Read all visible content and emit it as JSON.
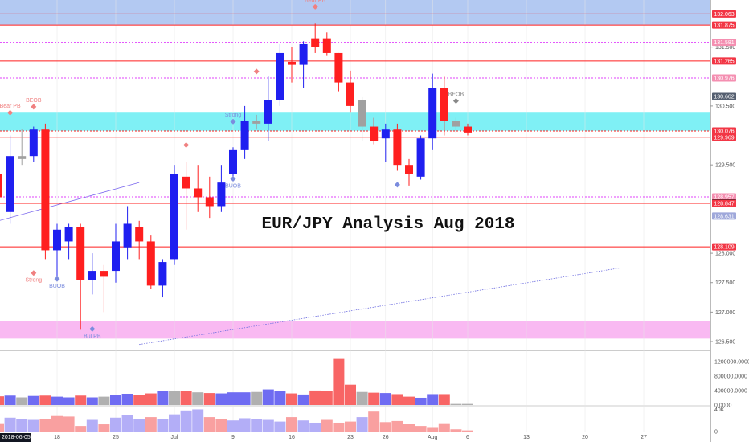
{
  "chart_data": {
    "type": "candlestick",
    "title": "EUR/JPY Analysis Aug 2018",
    "price_axis": {
      "ylim": [
        126.35,
        132.3
      ],
      "ticks": [
        "129.500",
        "128.000",
        "127.500",
        "127.000",
        "126.500",
        "131.500",
        "130.500"
      ],
      "tick_values": [
        129.5,
        128.0,
        127.5,
        127.0,
        126.5,
        131.5,
        130.5
      ]
    },
    "time_axis": {
      "xlim": [
        0,
        53
      ],
      "labels": [
        {
          "text": "2018-06-05",
          "index": 0,
          "highlight": true
        },
        {
          "text": "18",
          "index": 5
        },
        {
          "text": "25",
          "index": 10
        },
        {
          "text": "Jul",
          "index": 15
        },
        {
          "text": "9",
          "index": 20
        },
        {
          "text": "16",
          "index": 25
        },
        {
          "text": "23",
          "index": 30
        },
        {
          "text": "26",
          "index": 33
        },
        {
          "text": "Aug",
          "index": 37
        },
        {
          "text": "6",
          "index": 40
        },
        {
          "text": "13",
          "index": 45
        },
        {
          "text": "20",
          "index": 50
        },
        {
          "text": "27",
          "index": 55
        }
      ]
    },
    "candles": [
      {
        "o": 128.95,
        "h": 129.9,
        "l": 128.7,
        "c": 129.35,
        "color": "red"
      },
      {
        "o": 128.7,
        "h": 130.0,
        "l": 128.5,
        "c": 129.65,
        "color": "blue"
      },
      {
        "o": 129.6,
        "h": 130.1,
        "l": 129.5,
        "c": 129.65,
        "color": "gray"
      },
      {
        "o": 129.65,
        "h": 130.15,
        "l": 129.55,
        "c": 130.1,
        "color": "blue"
      },
      {
        "o": 130.1,
        "h": 130.2,
        "l": 127.9,
        "c": 128.05,
        "color": "red"
      },
      {
        "o": 128.05,
        "h": 128.5,
        "l": 127.6,
        "c": 128.4,
        "color": "blue"
      },
      {
        "o": 128.2,
        "h": 128.5,
        "l": 127.9,
        "c": 128.45,
        "color": "blue"
      },
      {
        "o": 128.45,
        "h": 128.5,
        "l": 126.7,
        "c": 127.55,
        "color": "red"
      },
      {
        "o": 127.55,
        "h": 128.0,
        "l": 127.3,
        "c": 127.7,
        "color": "blue"
      },
      {
        "o": 127.6,
        "h": 127.8,
        "l": 127.0,
        "c": 127.7,
        "color": "red"
      },
      {
        "o": 127.7,
        "h": 128.5,
        "l": 127.5,
        "c": 128.2,
        "color": "blue"
      },
      {
        "o": 128.1,
        "h": 128.8,
        "l": 127.9,
        "c": 128.5,
        "color": "blue"
      },
      {
        "o": 128.45,
        "h": 128.55,
        "l": 127.9,
        "c": 128.2,
        "color": "red"
      },
      {
        "o": 128.2,
        "h": 128.3,
        "l": 127.4,
        "c": 127.45,
        "color": "red"
      },
      {
        "o": 127.45,
        "h": 127.9,
        "l": 127.25,
        "c": 127.85,
        "color": "blue"
      },
      {
        "o": 127.9,
        "h": 129.5,
        "l": 127.8,
        "c": 129.35,
        "color": "blue"
      },
      {
        "o": 129.3,
        "h": 129.55,
        "l": 128.4,
        "c": 129.1,
        "color": "red"
      },
      {
        "o": 129.1,
        "h": 129.5,
        "l": 128.7,
        "c": 128.95,
        "color": "red"
      },
      {
        "o": 128.95,
        "h": 129.3,
        "l": 128.6,
        "c": 128.8,
        "color": "red"
      },
      {
        "o": 128.8,
        "h": 129.5,
        "l": 128.7,
        "c": 129.2,
        "color": "blue"
      },
      {
        "o": 129.35,
        "h": 129.8,
        "l": 129.3,
        "c": 129.75,
        "color": "blue"
      },
      {
        "o": 129.75,
        "h": 130.5,
        "l": 129.6,
        "c": 130.25,
        "color": "blue"
      },
      {
        "o": 130.25,
        "h": 130.35,
        "l": 130.1,
        "c": 130.2,
        "color": "gray"
      },
      {
        "o": 130.2,
        "h": 131.0,
        "l": 129.9,
        "c": 130.6,
        "color": "blue"
      },
      {
        "o": 130.6,
        "h": 131.55,
        "l": 130.5,
        "c": 131.4,
        "color": "blue"
      },
      {
        "o": 131.2,
        "h": 131.5,
        "l": 130.9,
        "c": 131.25,
        "color": "red"
      },
      {
        "o": 131.2,
        "h": 131.6,
        "l": 130.8,
        "c": 131.55,
        "color": "blue"
      },
      {
        "o": 131.65,
        "h": 131.9,
        "l": 131.4,
        "c": 131.5,
        "color": "red"
      },
      {
        "o": 131.65,
        "h": 131.75,
        "l": 131.35,
        "c": 131.4,
        "color": "red"
      },
      {
        "o": 131.4,
        "h": 131.4,
        "l": 130.75,
        "c": 130.9,
        "color": "red"
      },
      {
        "o": 130.9,
        "h": 131.1,
        "l": 130.4,
        "c": 130.5,
        "color": "red"
      },
      {
        "o": 130.6,
        "h": 130.65,
        "l": 129.9,
        "c": 130.15,
        "color": "gray"
      },
      {
        "o": 130.15,
        "h": 130.3,
        "l": 129.85,
        "c": 129.9,
        "color": "red"
      },
      {
        "o": 129.95,
        "h": 130.2,
        "l": 129.55,
        "c": 130.1,
        "color": "blue"
      },
      {
        "o": 130.1,
        "h": 130.2,
        "l": 129.4,
        "c": 129.5,
        "color": "red"
      },
      {
        "o": 129.5,
        "h": 129.6,
        "l": 129.15,
        "c": 129.35,
        "color": "red"
      },
      {
        "o": 129.3,
        "h": 130.0,
        "l": 129.25,
        "c": 129.95,
        "color": "blue"
      },
      {
        "o": 129.95,
        "h": 131.05,
        "l": 129.75,
        "c": 130.8,
        "color": "blue"
      },
      {
        "o": 130.8,
        "h": 131.0,
        "l": 130.0,
        "c": 130.25,
        "color": "red"
      },
      {
        "o": 130.25,
        "h": 130.3,
        "l": 130.05,
        "c": 130.15,
        "color": "gray"
      },
      {
        "o": 130.15,
        "h": 130.2,
        "l": 130.0,
        "c": 130.05,
        "color": "red"
      }
    ],
    "price_lines": [
      {
        "price": 132.063,
        "label": "132.063",
        "style": "solid",
        "color": "#ff1f1f"
      },
      {
        "price": 131.875,
        "label": "131.875",
        "style": "solid",
        "color": "#ff1f1f"
      },
      {
        "price": 131.581,
        "label": "131.581",
        "style": "dotted",
        "color": "#e040fb"
      },
      {
        "price": 131.265,
        "label": "131.265",
        "style": "solid",
        "color": "#ff1f1f"
      },
      {
        "price": 130.976,
        "label": "130.976",
        "style": "dotted",
        "color": "#e040fb"
      },
      {
        "price": 130.076,
        "label": "130.076",
        "style": "dotted",
        "color": "#ff1f1f"
      },
      {
        "price": 129.969,
        "label": "129.969",
        "style": "solid",
        "color": "#ff1f1f"
      },
      {
        "price": 128.957,
        "label": "128.957",
        "style": "dotted",
        "color": "#e040fb"
      },
      {
        "price": 128.854,
        "label": "128.854",
        "style": "solid",
        "color": "#222222"
      },
      {
        "price": 128.847,
        "label": "128.847",
        "style": "solid",
        "color": "#ff1f1f"
      },
      {
        "price": 128.109,
        "label": "128.109",
        "style": "solid",
        "color": "#ff1f1f"
      }
    ],
    "price_badges": [
      {
        "price": 132.063,
        "label": "132.063",
        "color": "#f23645"
      },
      {
        "price": 131.875,
        "label": "131.875",
        "color": "#f23645"
      },
      {
        "price": 131.581,
        "label": "131.581",
        "color": "#f48fb1"
      },
      {
        "price": 131.265,
        "label": "131.265",
        "color": "#f23645"
      },
      {
        "price": 130.976,
        "label": "130.976",
        "color": "#f48fb1"
      },
      {
        "price": 130.662,
        "label": "130.662",
        "color": "#555f70"
      },
      {
        "price": 130.076,
        "label": "130.076",
        "color": "#f23645"
      },
      {
        "price": 129.969,
        "label": "129.969",
        "color": "#f23645"
      },
      {
        "price": 128.957,
        "label": "128.957",
        "color": "#f48fb1"
      },
      {
        "price": 128.854,
        "label": "128.854",
        "color": "#131722"
      },
      {
        "price": 128.847,
        "label": "128.847",
        "color": "#f23645"
      },
      {
        "price": 128.631,
        "label": "128.631",
        "color": "#9fa8da"
      },
      {
        "price": 128.109,
        "label": "128.109",
        "color": "#f23645"
      }
    ],
    "zones": [
      {
        "from": 131.88,
        "to": 132.35,
        "color": "#b3c9f2"
      },
      {
        "from": 130.08,
        "to": 130.4,
        "color": "#7ff0f5"
      },
      {
        "from": 126.55,
        "to": 126.85,
        "color": "#f9b9f2"
      }
    ],
    "trendlines": [
      {
        "from": [
          0,
          128.55
        ],
        "to": [
          12,
          129.2
        ],
        "color": "#7b68ee",
        "style": "solid"
      },
      {
        "from": [
          12,
          126.45
        ],
        "to": [
          53,
          127.75
        ],
        "color": "#6f6fe0",
        "style": "dotted"
      }
    ],
    "signals": [
      {
        "index": 1,
        "price": 130.25,
        "label": "Bear PB",
        "side": "above",
        "color": "#f08080"
      },
      {
        "index": 3,
        "price": 130.35,
        "label": "BEOB",
        "side": "above",
        "color": "#f08080"
      },
      {
        "index": 3,
        "price": 127.8,
        "label": "Strong",
        "side": "below",
        "color": "#f08080"
      },
      {
        "index": 5,
        "price": 127.7,
        "label": "BUOB",
        "side": "below",
        "color": "#7b8cde"
      },
      {
        "index": 8,
        "price": 126.85,
        "label": "Bul PB",
        "side": "below",
        "color": "#7b8cde"
      },
      {
        "index": 16,
        "price": 129.7,
        "label": "",
        "side": "above",
        "color": "#f08080"
      },
      {
        "index": 20,
        "price": 130.1,
        "label": "Strong",
        "side": "above",
        "color": "#7b8cde"
      },
      {
        "index": 20,
        "price": 129.4,
        "label": "BUOB",
        "side": "below",
        "color": "#7b8cde"
      },
      {
        "index": 22,
        "price": 130.95,
        "label": "",
        "side": "above",
        "color": "#f08080"
      },
      {
        "index": 27,
        "price": 132.05,
        "label": "Bear PB",
        "side": "above",
        "color": "#f08080"
      },
      {
        "index": 34,
        "price": 129.3,
        "label": "",
        "side": "below",
        "color": "#7b8cde"
      },
      {
        "index": 39,
        "price": 130.45,
        "label": "BEOB",
        "side": "above",
        "color": "#888888"
      }
    ],
    "volume_panel": {
      "ticks": [
        "1200000.0000",
        "800000.0000",
        "400000.0000",
        "0.0000"
      ],
      "tick_values": [
        1200000,
        800000,
        400000,
        0
      ],
      "ylim": [
        0,
        1350000
      ],
      "values": [
        240000,
        260000,
        210000,
        250000,
        260000,
        230000,
        210000,
        260000,
        210000,
        230000,
        280000,
        310000,
        280000,
        320000,
        380000,
        380000,
        390000,
        350000,
        330000,
        320000,
        350000,
        350000,
        360000,
        430000,
        380000,
        320000,
        290000,
        400000,
        380000,
        1270000,
        560000,
        360000,
        340000,
        330000,
        300000,
        230000,
        200000,
        300000,
        300000,
        30000,
        30000
      ],
      "colors": [
        "red",
        "blue",
        "gray",
        "blue",
        "red",
        "blue",
        "blue",
        "red",
        "blue",
        "gray",
        "blue",
        "blue",
        "red",
        "red",
        "blue",
        "gray",
        "red",
        "gray",
        "red",
        "blue",
        "blue",
        "blue",
        "gray",
        "blue",
        "blue",
        "red",
        "blue",
        "red",
        "red",
        "red",
        "red",
        "gray",
        "red",
        "blue",
        "red",
        "red",
        "blue",
        "blue",
        "red",
        "gray",
        "gray"
      ]
    },
    "osc_panel": {
      "ticks": [
        "40K",
        "0"
      ],
      "tick_values": [
        40000,
        0
      ],
      "ylim": [
        0,
        45000
      ],
      "values": [
        15000,
        25000,
        23000,
        21000,
        22000,
        28000,
        27000,
        10000,
        21000,
        13000,
        25000,
        30000,
        23000,
        26000,
        22000,
        31000,
        38000,
        40000,
        26000,
        23000,
        20000,
        24000,
        23000,
        21000,
        18000,
        26000,
        20000,
        16000,
        21000,
        16000,
        18000,
        26000,
        36000,
        17000,
        19000,
        14000,
        10000,
        8000,
        15000,
        4000,
        2000
      ],
      "colors": [
        "red",
        "blue",
        "blue",
        "blue",
        "red",
        "red",
        "red",
        "red",
        "blue",
        "red",
        "blue",
        "blue",
        "blue",
        "red",
        "blue",
        "blue",
        "blue",
        "blue",
        "red",
        "red",
        "blue",
        "blue",
        "blue",
        "blue",
        "blue",
        "red",
        "blue",
        "blue",
        "red",
        "red",
        "red",
        "blue",
        "red",
        "red",
        "red",
        "red",
        "red",
        "red",
        "red",
        "red",
        "red"
      ]
    }
  },
  "colors": {
    "bull": "#1f1ff0",
    "bear": "#ff1f1f",
    "neutral": "#a0a0a0",
    "vol_blue": "#6f6cf2",
    "vol_red": "#f86565",
    "vol_gray": "#b0b0b0",
    "osc_blue": "#b3aef7",
    "osc_red": "#f9a0a0",
    "grid": "#e6e6e6",
    "axis_bg": "#ffffff",
    "date_badge": "#131722"
  }
}
